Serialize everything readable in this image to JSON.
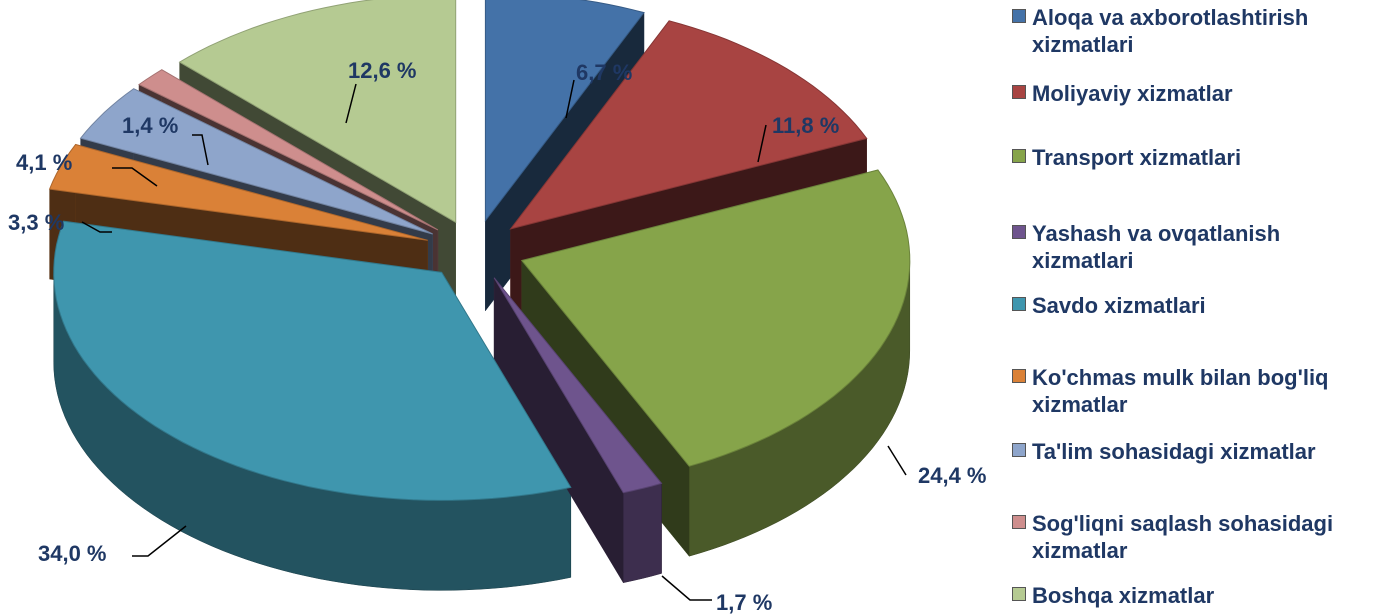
{
  "chart_data": {
    "type": "pie",
    "title": "",
    "legend_position": "right",
    "slices": [
      {
        "name": "Aloqa va axborotlashtirish xizmatlari",
        "value": 6.7,
        "label": "6,7 %",
        "color": "#4472A8"
      },
      {
        "name": "Moliyaviy xizmatlar",
        "value": 11.8,
        "label": "11,8 %",
        "color": "#A84442"
      },
      {
        "name": "Transport xizmatlari",
        "value": 24.4,
        "label": "24,4 %",
        "color": "#86A44A"
      },
      {
        "name": "Yashash va ovqatlanish xizmatlari",
        "value": 1.7,
        "label": "1,7 %",
        "color": "#6E548D"
      },
      {
        "name": "Savdo xizmatlari",
        "value": 34.0,
        "label": "34,0 %",
        "color": "#3F96AE"
      },
      {
        "name": "Ko'chmas mulk bilan bog'liq xizmatlar",
        "value": 3.3,
        "label": "3,3 %",
        "color": "#DA8137"
      },
      {
        "name": "Ta'lim sohasidagi xizmatlar",
        "value": 4.1,
        "label": "4,1 %",
        "color": "#8EA5CB"
      },
      {
        "name": "Sog'liqni saqlash sohasidagi xizmatlar",
        "value": 1.4,
        "label": "1,4 %",
        "color": "#CE8E8D"
      },
      {
        "name": "Boshqa xizmatlar",
        "value": 12.6,
        "label": "12,6 %",
        "color": "#B5CA92"
      }
    ]
  }
}
